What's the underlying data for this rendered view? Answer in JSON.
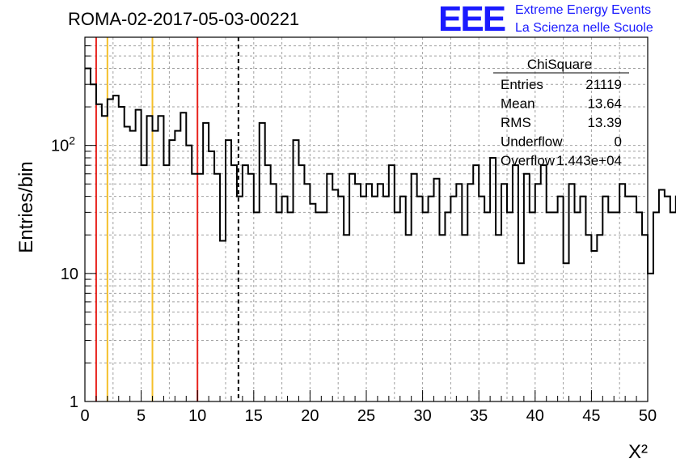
{
  "header": {
    "title": "ROMA-02-2017-05-03-00221",
    "logo": "EEE",
    "logo_line1": "Extreme Energy Events",
    "logo_line2": "La Scienza nelle Scuole",
    "logo_color": "#1a1aff"
  },
  "stats": {
    "name": "ChiSquare",
    "rows": [
      {
        "label": "Entries",
        "value": "21119"
      },
      {
        "label": "Mean",
        "value": "13.64"
      },
      {
        "label": "RMS",
        "value": "13.39"
      },
      {
        "label": "Underflow",
        "value": "0"
      },
      {
        "label": "Overflow",
        "value": "1.443e+04"
      }
    ]
  },
  "chart_data": {
    "type": "histogram",
    "title": "ROMA-02-2017-05-03-00221",
    "xlabel": "X²",
    "ylabel": "Entries/bin",
    "xlim": [
      0,
      50
    ],
    "ylim": [
      1,
      700
    ],
    "yscale": "log",
    "grid": true,
    "bin_width": 0.5,
    "x_ticks": [
      "0",
      "5",
      "10",
      "15",
      "20",
      "25",
      "30",
      "35",
      "40",
      "45",
      "50"
    ],
    "y_ticks": [
      {
        "value": 1,
        "label": "1"
      },
      {
        "value": 10,
        "label": "10"
      },
      {
        "value": 100,
        "label": "10",
        "exp": "2"
      }
    ],
    "values": [
      400,
      300,
      210,
      170,
      230,
      245,
      200,
      140,
      130,
      190,
      70,
      170,
      130,
      170,
      70,
      110,
      130,
      180,
      100,
      60,
      60,
      150,
      90,
      60,
      18,
      110,
      70,
      40,
      70,
      60,
      30,
      150,
      70,
      50,
      30,
      40,
      30,
      110,
      70,
      50,
      35,
      30,
      30,
      60,
      45,
      40,
      20,
      60,
      50,
      40,
      50,
      40,
      50,
      40,
      70,
      30,
      40,
      20,
      60,
      40,
      30,
      40,
      55,
      20,
      30,
      40,
      50,
      20,
      50,
      70,
      40,
      30,
      80,
      20,
      50,
      30,
      70,
      12,
      60,
      30,
      50,
      70,
      30,
      30,
      40,
      12,
      50,
      30,
      40,
      20,
      15,
      20,
      40,
      30,
      30,
      50,
      40,
      40,
      30,
      20,
      10,
      30,
      45,
      40,
      30,
      40,
      15,
      80,
      40,
      15,
      30,
      30,
      50,
      35,
      35,
      20,
      30,
      10,
      20,
      15,
      40,
      70,
      40,
      30,
      40,
      15,
      20,
      30,
      40,
      20,
      30,
      40,
      10,
      40,
      20,
      15,
      20,
      40,
      30,
      40,
      15,
      20,
      20,
      30,
      50,
      20,
      20,
      20,
      50,
      25
    ],
    "vlines": [
      {
        "x": 1,
        "color": "#e8231d",
        "style": "solid"
      },
      {
        "x": 10,
        "color": "#e8231d",
        "style": "solid"
      },
      {
        "x": 2,
        "color": "#f5c02a",
        "style": "solid"
      },
      {
        "x": 6,
        "color": "#f5c02a",
        "style": "solid"
      },
      {
        "x": 13.64,
        "color": "#000000",
        "style": "dashed"
      }
    ]
  }
}
